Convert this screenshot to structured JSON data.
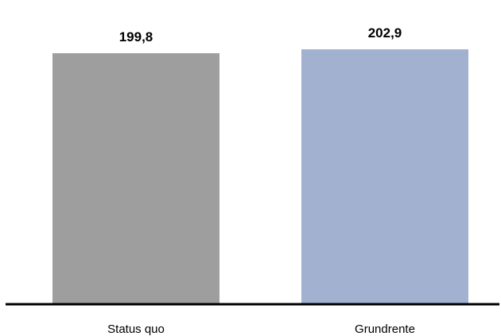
{
  "chart_data": {
    "type": "bar",
    "categories": [
      "Status quo",
      "Grundrente"
    ],
    "values": [
      199.8,
      202.9
    ],
    "value_labels": [
      "199,8",
      "202,9"
    ],
    "colors": [
      "#9e9e9e",
      "#a3b1d1"
    ],
    "axis_color": "#000000",
    "title": "",
    "xlabel": "",
    "ylabel": "",
    "y_axis_shown": false,
    "grid": false,
    "legend": "none"
  }
}
